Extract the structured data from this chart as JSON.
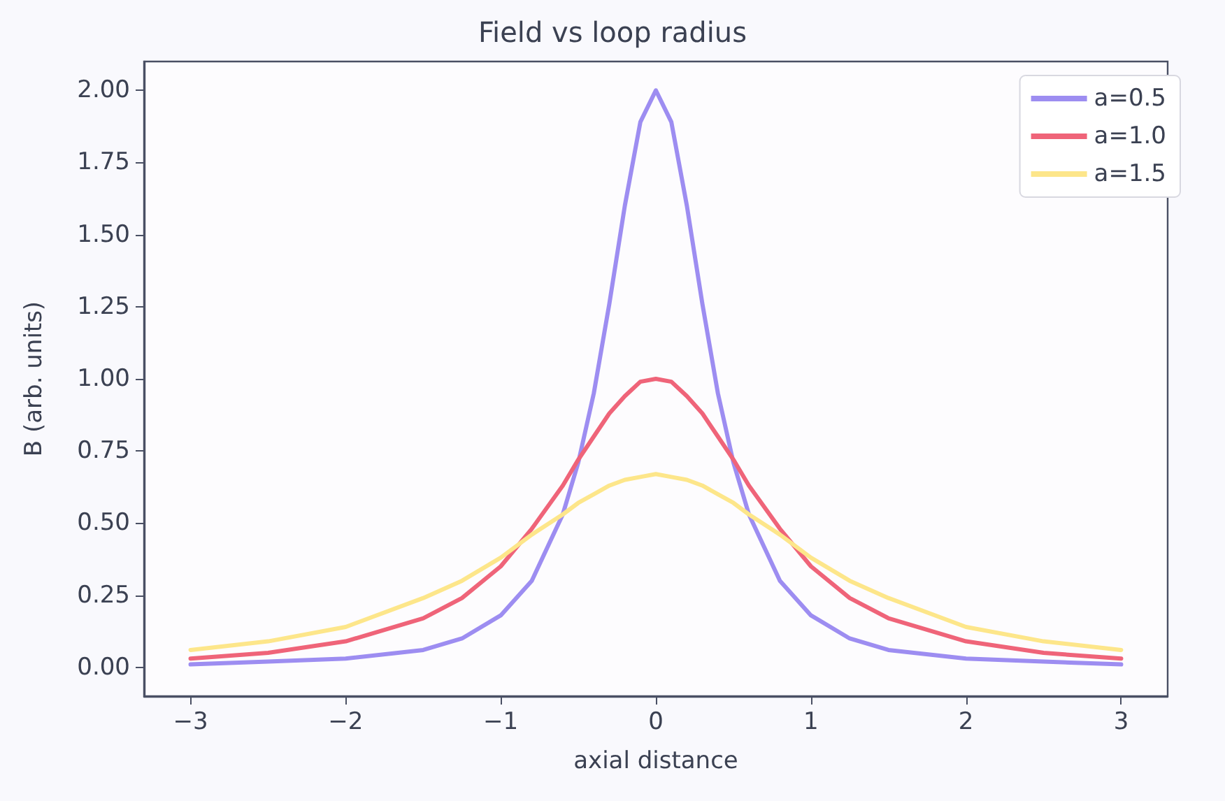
{
  "chart_data": {
    "type": "line",
    "title": "Field vs loop radius",
    "xlabel": "axial distance",
    "ylabel": "B (arb. units)",
    "x": [
      -3,
      -2.5,
      -2,
      -1.5,
      -1.25,
      -1,
      -0.8,
      -0.6,
      -0.5,
      -0.4,
      -0.3,
      -0.2,
      -0.1,
      0,
      0.1,
      0.2,
      0.3,
      0.4,
      0.5,
      0.6,
      0.8,
      1,
      1.25,
      1.5,
      2,
      2.5,
      3
    ],
    "series": [
      {
        "name": "a=0.5",
        "color": "#9d8df1",
        "values": [
          0.01,
          0.02,
          0.03,
          0.06,
          0.1,
          0.18,
          0.3,
          0.53,
          0.71,
          0.95,
          1.26,
          1.6,
          1.89,
          2.0,
          1.89,
          1.6,
          1.26,
          0.95,
          0.71,
          0.53,
          0.3,
          0.18,
          0.1,
          0.06,
          0.03,
          0.02,
          0.01
        ]
      },
      {
        "name": "a=1.0",
        "color": "#ef6479",
        "values": [
          0.03,
          0.05,
          0.09,
          0.17,
          0.24,
          0.35,
          0.48,
          0.63,
          0.72,
          0.8,
          0.88,
          0.94,
          0.99,
          1.0,
          0.99,
          0.94,
          0.88,
          0.8,
          0.72,
          0.63,
          0.48,
          0.35,
          0.24,
          0.17,
          0.09,
          0.05,
          0.03
        ]
      },
      {
        "name": "a=1.5",
        "color": "#fde68a",
        "values": [
          0.06,
          0.09,
          0.14,
          0.24,
          0.3,
          0.38,
          0.46,
          0.53,
          0.57,
          0.6,
          0.63,
          0.65,
          0.66,
          0.67,
          0.66,
          0.65,
          0.63,
          0.6,
          0.57,
          0.53,
          0.46,
          0.38,
          0.3,
          0.24,
          0.14,
          0.09,
          0.06
        ]
      }
    ],
    "xlim": [
      -3.3,
      3.3
    ],
    "ylim": [
      -0.1,
      2.1
    ],
    "xticks": [
      {
        "value": -3,
        "label": "−3"
      },
      {
        "value": -2,
        "label": "−2"
      },
      {
        "value": -1,
        "label": "−1"
      },
      0,
      1,
      2,
      3
    ],
    "yticks": [
      {
        "value": 0,
        "label": "0.00"
      },
      {
        "value": 0.25,
        "label": "0.25"
      },
      {
        "value": 0.5,
        "label": "0.50"
      },
      {
        "value": 0.75,
        "label": "0.75"
      },
      {
        "value": 1,
        "label": "1.00"
      },
      {
        "value": 1.25,
        "label": "1.25"
      },
      {
        "value": 1.5,
        "label": "1.50"
      },
      {
        "value": 1.75,
        "label": "1.75"
      },
      {
        "value": 2,
        "label": "2.00"
      }
    ],
    "grid": false,
    "legend": "top right",
    "marker": "none",
    "line_style": "solid"
  }
}
